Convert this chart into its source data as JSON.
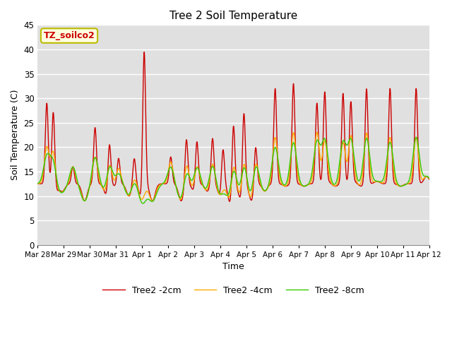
{
  "title": "Tree 2 Soil Temperature",
  "xlabel": "Time",
  "ylabel": "Soil Temperature (C)",
  "ylim": [
    0,
    45
  ],
  "annotation": "TZ_soilco2",
  "xtick_labels": [
    "Mar 28",
    "Mar 29",
    "Mar 30",
    "Mar 31",
    "Apr 1",
    "Apr 2",
    "Apr 3",
    "Apr 4",
    "Apr 5",
    "Apr 6",
    "Apr 7",
    "Apr 8",
    "Apr 9",
    "Apr 10",
    "Apr 11",
    "Apr 12"
  ],
  "legend": [
    "Tree2 -2cm",
    "Tree2 -4cm",
    "Tree2 -8cm"
  ],
  "colors": [
    "#cc0000",
    "#ffaa00",
    "#33cc00"
  ],
  "background_color": "#e0e0e0",
  "grid_color": "#ffffff",
  "line_width": 1.0,
  "figsize": [
    6.4,
    4.8
  ],
  "dpi": 100
}
